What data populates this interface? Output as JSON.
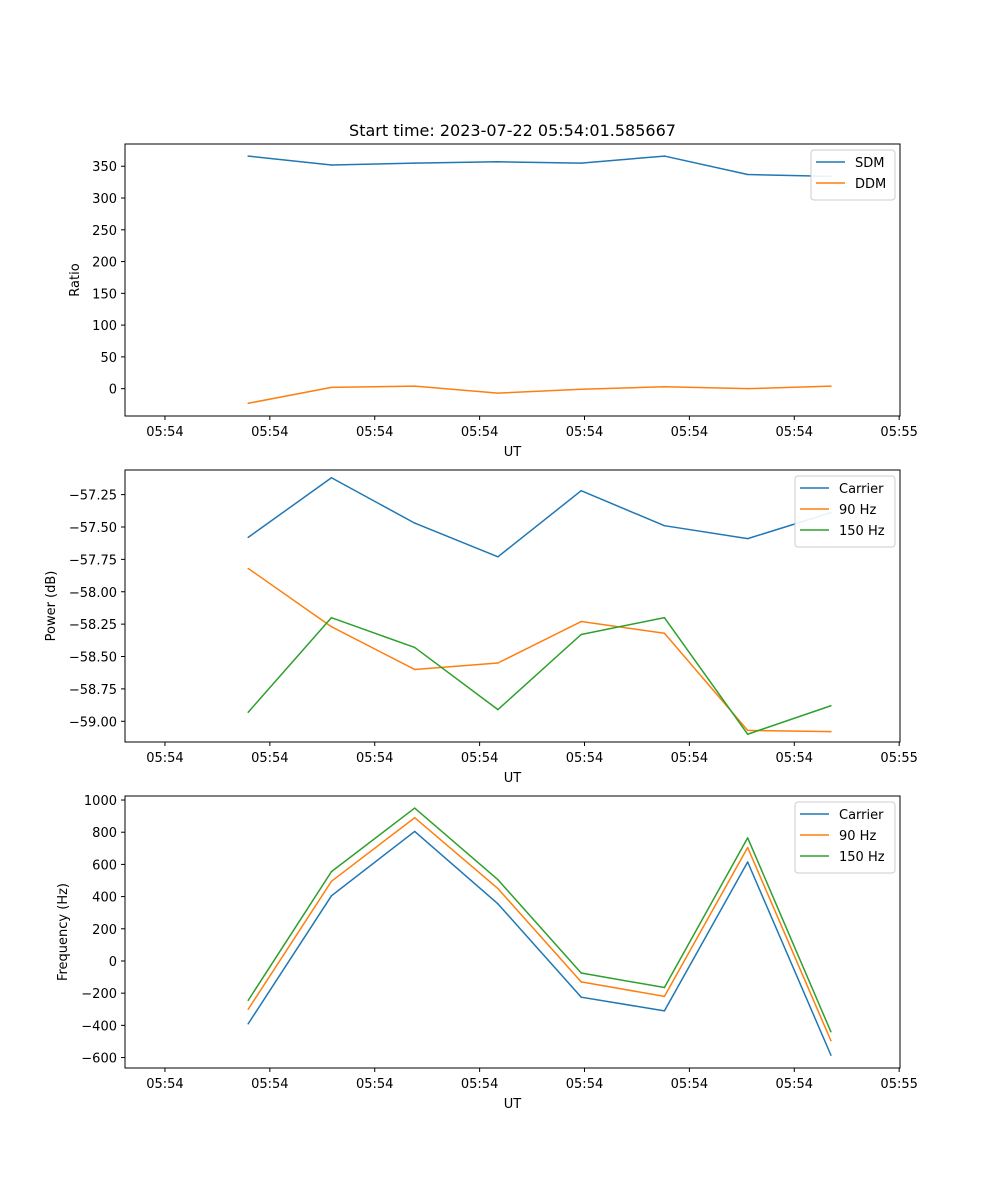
{
  "title": "Start time: 2023-07-22 05:54:01.585667",
  "chart_data": [
    {
      "type": "line",
      "title": "Start time: 2023-07-22 05:54:01.585667",
      "xlabel": "UT",
      "ylabel": "Ratio",
      "x_tick_labels": [
        "05:54",
        "05:54",
        "05:54",
        "05:54",
        "05:54",
        "05:54",
        "05:54"
      ],
      "x_last_tick_label": "05:55",
      "xlim": [
        -0.48,
        8.83
      ],
      "x": [
        1,
        2,
        3,
        4,
        5,
        6,
        7,
        8
      ],
      "ylim": [
        -43,
        385
      ],
      "yticks": [
        0,
        50,
        100,
        150,
        200,
        250,
        300,
        350
      ],
      "ytick_labels": [
        "0",
        "50",
        "100",
        "150",
        "200",
        "250",
        "300",
        "350"
      ],
      "legend_position": "top-right",
      "series": [
        {
          "name": "SDM",
          "color": "#1f77b4",
          "values": [
            366,
            352,
            355,
            357,
            355,
            366,
            337,
            334
          ]
        },
        {
          "name": "DDM",
          "color": "#ff7f0e",
          "values": [
            -23,
            2,
            4,
            -7,
            -1,
            3,
            0,
            4
          ]
        }
      ]
    },
    {
      "type": "line",
      "xlabel": "UT",
      "ylabel": "Power (dB)",
      "x_tick_labels": [
        "05:54",
        "05:54",
        "05:54",
        "05:54",
        "05:54",
        "05:54",
        "05:54"
      ],
      "x_last_tick_label": "05:55",
      "xlim": [
        -0.48,
        8.83
      ],
      "x": [
        1,
        2,
        3,
        4,
        5,
        6,
        7,
        8
      ],
      "ylim": [
        -59.16,
        -57.06
      ],
      "yticks": [
        -59.0,
        -58.75,
        -58.5,
        -58.25,
        -58.0,
        -57.75,
        -57.5,
        -57.25
      ],
      "ytick_labels": [
        "−59.00",
        "−58.75",
        "−58.50",
        "−58.25",
        "−58.00",
        "−57.75",
        "−57.50",
        "−57.25"
      ],
      "legend_position": "top-right",
      "series": [
        {
          "name": "Carrier",
          "color": "#1f77b4",
          "values": [
            -57.58,
            -57.12,
            -57.47,
            -57.73,
            -57.22,
            -57.49,
            -57.59,
            -57.39
          ]
        },
        {
          "name": "90 Hz",
          "color": "#ff7f0e",
          "values": [
            -57.82,
            -58.27,
            -58.6,
            -58.55,
            -58.23,
            -58.32,
            -59.07,
            -59.08
          ]
        },
        {
          "name": "150 Hz",
          "color": "#2ca02c",
          "values": [
            -58.93,
            -58.2,
            -58.43,
            -58.91,
            -58.33,
            -58.2,
            -59.1,
            -58.88
          ]
        }
      ]
    },
    {
      "type": "line",
      "xlabel": "UT",
      "ylabel": "Frequency (Hz)",
      "x_tick_labels": [
        "05:54",
        "05:54",
        "05:54",
        "05:54",
        "05:54",
        "05:54",
        "05:54"
      ],
      "x_last_tick_label": "05:55",
      "xlim": [
        -0.48,
        8.83
      ],
      "x": [
        1,
        2,
        3,
        4,
        5,
        6,
        7,
        8
      ],
      "ylim": [
        -665,
        1025
      ],
      "yticks": [
        -600,
        -400,
        -200,
        0,
        200,
        400,
        600,
        800,
        1000
      ],
      "ytick_labels": [
        "−600",
        "−400",
        "−200",
        "0",
        "200",
        "400",
        "600",
        "800",
        "1000"
      ],
      "legend_position": "top-right",
      "series": [
        {
          "name": "Carrier",
          "color": "#1f77b4",
          "values": [
            -390,
            405,
            805,
            355,
            -225,
            -310,
            615,
            -585
          ]
        },
        {
          "name": "90 Hz",
          "color": "#ff7f0e",
          "values": [
            -300,
            495,
            890,
            450,
            -130,
            -220,
            705,
            -495
          ]
        },
        {
          "name": "150 Hz",
          "color": "#2ca02c",
          "values": [
            -245,
            555,
            950,
            505,
            -75,
            -165,
            765,
            -440
          ]
        }
      ]
    }
  ]
}
